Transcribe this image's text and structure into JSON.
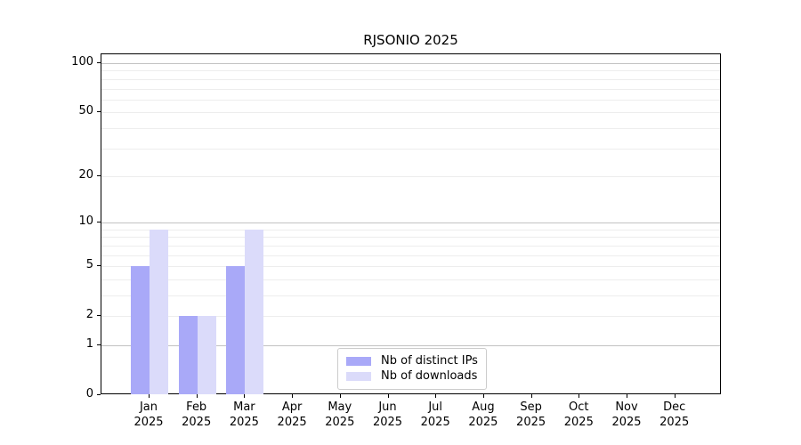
{
  "title": "RJSONIO 2025",
  "chart_data": {
    "type": "bar",
    "title": "RJSONIO 2025",
    "categories": [
      "Jan",
      "Feb",
      "Mar",
      "Apr",
      "May",
      "Jun",
      "Jul",
      "Aug",
      "Sep",
      "Oct",
      "Nov",
      "Dec"
    ],
    "year_label": "2025",
    "series": [
      {
        "name": "Nb of distinct IPs",
        "color": "#a9a9f8",
        "values": [
          5,
          2,
          5,
          0,
          0,
          0,
          0,
          0,
          0,
          0,
          0,
          0
        ]
      },
      {
        "name": "Nb of downloads",
        "color": "#dbdbfa",
        "values": [
          9,
          2,
          9,
          0,
          0,
          0,
          0,
          0,
          0,
          0,
          0,
          0
        ]
      }
    ],
    "yscale": "log1p",
    "ylim": [
      0,
      100
    ],
    "yticks": [
      0,
      1,
      2,
      5,
      10,
      20,
      50,
      100
    ],
    "grid": "horizontal, minor lines light, decade lines darker",
    "legend_position": "lower center",
    "colors": {
      "major_gridline": "#c2c2c2",
      "minor_gridline": "#ededed",
      "axis": "#000000",
      "legend_border": "#cccccc"
    }
  }
}
